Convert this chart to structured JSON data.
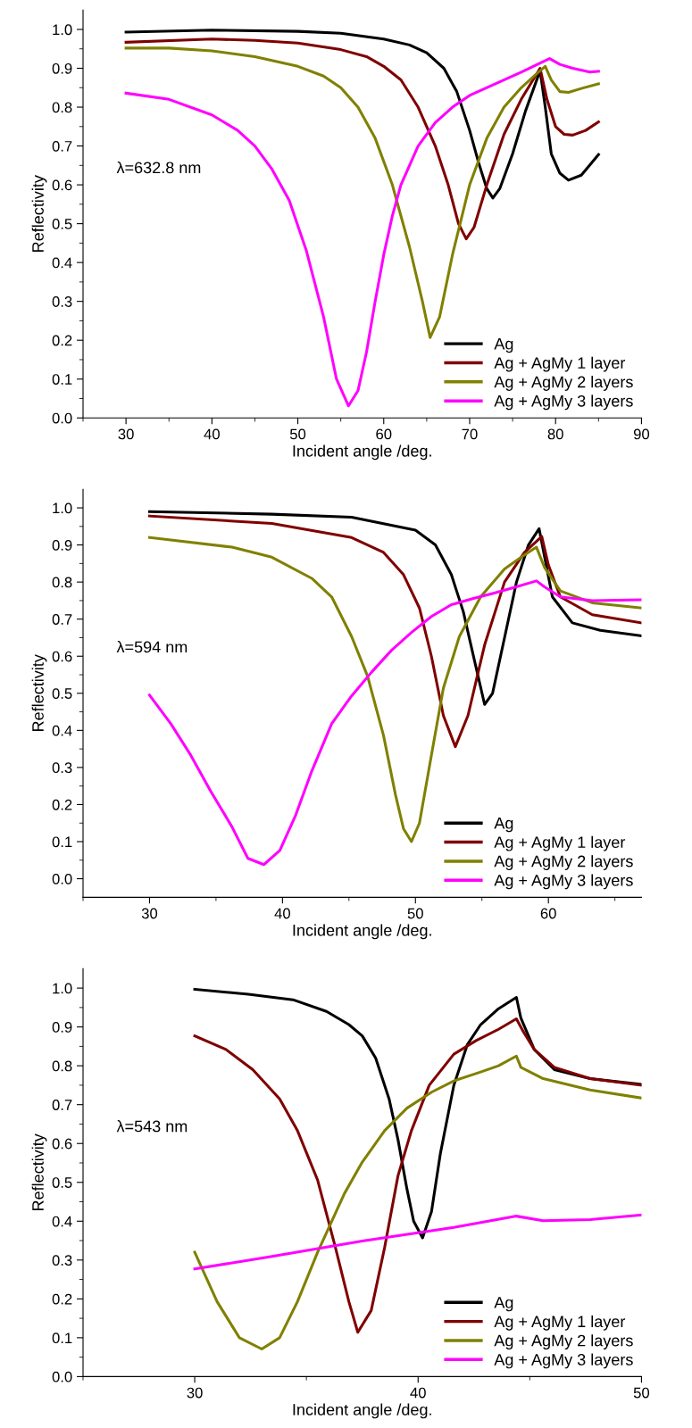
{
  "chart_data": [
    {
      "type": "line",
      "xlabel": "Incident angle /deg.",
      "ylabel": "Reflectivity",
      "annotations": [
        "λ=632.8 nm"
      ],
      "xlim": [
        25,
        90
      ],
      "ylim": [
        0,
        1.05
      ],
      "xticks": [
        30,
        40,
        50,
        60,
        70,
        80,
        90,
        {
          "value": 25,
          "label": null
        },
        {
          "value": 35,
          "label": null
        },
        {
          "value": 45,
          "label": null
        },
        {
          "value": 55,
          "label": null
        },
        {
          "value": 65,
          "label": null
        },
        {
          "value": 75,
          "label": null
        },
        {
          "value": 85,
          "label": null
        }
      ],
      "yticks": [
        "0.0",
        0.1,
        0.2,
        0.3,
        0.4,
        0.5,
        0.6,
        0.7,
        0.8,
        0.9,
        "1.0"
      ],
      "grid": false,
      "legend": "bottom right",
      "line_style": "solid",
      "marker": "none",
      "series": [
        {
          "name": "Ag",
          "color": "#000000",
          "x": [
            30,
            40,
            50,
            55,
            60,
            63,
            65,
            67,
            68.5,
            70,
            71,
            72,
            72.7,
            73.5,
            75,
            76.5,
            78.2,
            78.8,
            79.5,
            80.5,
            81.5,
            83,
            85
          ],
          "values": [
            0.993,
            0.998,
            0.995,
            0.99,
            0.975,
            0.96,
            0.94,
            0.9,
            0.84,
            0.74,
            0.66,
            0.59,
            0.566,
            0.59,
            0.68,
            0.79,
            0.894,
            0.8,
            0.68,
            0.63,
            0.612,
            0.625,
            0.678
          ]
        },
        {
          "name": "Ag + AgMy 1 layer",
          "color": "#800000",
          "x": [
            30,
            40,
            45,
            50,
            55,
            58,
            60,
            62,
            64,
            66,
            67.5,
            68.7,
            69.6,
            70.5,
            72,
            74,
            76,
            78.2,
            79,
            80,
            81,
            82,
            83.5,
            85
          ],
          "values": [
            0.967,
            0.975,
            0.972,
            0.965,
            0.948,
            0.93,
            0.905,
            0.87,
            0.8,
            0.7,
            0.6,
            0.5,
            0.461,
            0.49,
            0.6,
            0.73,
            0.82,
            0.9,
            0.82,
            0.75,
            0.73,
            0.728,
            0.74,
            0.762
          ]
        },
        {
          "name": "Ag + AgMy 2 layers",
          "color": "#808000",
          "x": [
            30,
            35,
            40,
            45,
            50,
            53,
            55,
            57,
            59,
            61,
            63,
            64.5,
            65.4,
            66.5,
            68,
            70,
            72,
            74,
            76,
            78,
            78.8,
            79.5,
            80.5,
            81.5,
            83,
            85
          ],
          "values": [
            0.952,
            0.952,
            0.945,
            0.93,
            0.905,
            0.88,
            0.85,
            0.8,
            0.72,
            0.6,
            0.44,
            0.3,
            0.207,
            0.26,
            0.42,
            0.6,
            0.72,
            0.8,
            0.85,
            0.89,
            0.905,
            0.87,
            0.84,
            0.838,
            0.848,
            0.86
          ]
        },
        {
          "name": "Ag + AgMy 3 layers",
          "color": "#ff00ff",
          "x": [
            30,
            35,
            40,
            43,
            45,
            47,
            49,
            51,
            53,
            54.5,
            55.9,
            57,
            58,
            59,
            60,
            61,
            62,
            64,
            66,
            68,
            70,
            73,
            76,
            79.3,
            80.5,
            82,
            84,
            85
          ],
          "values": [
            0.836,
            0.82,
            0.78,
            0.74,
            0.7,
            0.64,
            0.56,
            0.43,
            0.26,
            0.1,
            0.031,
            0.07,
            0.17,
            0.3,
            0.42,
            0.52,
            0.6,
            0.7,
            0.76,
            0.8,
            0.83,
            0.86,
            0.89,
            0.925,
            0.91,
            0.9,
            0.89,
            0.892
          ]
        }
      ]
    },
    {
      "type": "line",
      "xlabel": "Incident angle /deg.",
      "ylabel": "Reflectivity",
      "annotations": [
        "λ=594 nm"
      ],
      "xlim": [
        25,
        67
      ],
      "ylim": [
        -0.05,
        1.05
      ],
      "xticks": [
        30,
        40,
        50,
        60,
        {
          "value": 25,
          "label": null
        },
        {
          "value": 35,
          "label": null
        },
        {
          "value": 45,
          "label": null
        },
        {
          "value": 55,
          "label": null
        },
        {
          "value": 65,
          "label": null
        }
      ],
      "yticks": [
        "0.0",
        0.1,
        0.2,
        0.3,
        0.4,
        0.5,
        0.6,
        0.7,
        0.8,
        0.9,
        "1.0"
      ],
      "grid": false,
      "legend": "bottom right",
      "line_style": "solid",
      "marker": "none",
      "series": [
        {
          "name": "Ag",
          "color": "#000000",
          "x": [
            30,
            39.2,
            45.2,
            50,
            51.5,
            52.7,
            53.6,
            54.3,
            55.2,
            55.8,
            56.7,
            57.6,
            58.5,
            59.3,
            59.7,
            60.3,
            61.8,
            63.9,
            67
          ],
          "values": [
            0.99,
            0.983,
            0.975,
            0.94,
            0.9,
            0.82,
            0.72,
            0.61,
            0.47,
            0.5,
            0.65,
            0.8,
            0.9,
            0.944,
            0.87,
            0.76,
            0.69,
            0.67,
            0.655
          ]
        },
        {
          "name": "Ag + AgMy 1 layer",
          "color": "#800000",
          "x": [
            30,
            39.2,
            45.2,
            47.6,
            49.1,
            50.3,
            51.2,
            52.1,
            53,
            53.95,
            55.2,
            56.7,
            58.2,
            59.5,
            60,
            60.9,
            63.3,
            67
          ],
          "values": [
            0.978,
            0.958,
            0.92,
            0.88,
            0.82,
            0.73,
            0.6,
            0.44,
            0.356,
            0.44,
            0.63,
            0.8,
            0.88,
            0.923,
            0.846,
            0.76,
            0.712,
            0.69
          ]
        },
        {
          "name": "Ag + AgMy 2 layers",
          "color": "#808000",
          "x": [
            30,
            36.2,
            39.2,
            42.2,
            43.7,
            45.2,
            46.4,
            47.6,
            48.5,
            49.1,
            49.7,
            50.3,
            51.2,
            52.1,
            53.3,
            54.9,
            56.7,
            58.2,
            59.1,
            59.7,
            60.9,
            63.3,
            67
          ],
          "values": [
            0.92,
            0.894,
            0.867,
            0.81,
            0.76,
            0.653,
            0.546,
            0.386,
            0.226,
            0.135,
            0.1,
            0.15,
            0.333,
            0.514,
            0.653,
            0.76,
            0.835,
            0.873,
            0.894,
            0.84,
            0.776,
            0.744,
            0.73
          ]
        },
        {
          "name": "Ag + AgMy 3 layers",
          "color": "#ff00ff",
          "x": [
            30,
            31.6,
            33.1,
            34.6,
            36.2,
            37.4,
            38.6,
            39.8,
            41,
            42.2,
            43.7,
            45.2,
            46.7,
            48.2,
            49.7,
            51.2,
            52.7,
            54.3,
            55.8,
            57.3,
            59.1,
            59.7,
            60.9,
            63.3,
            67
          ],
          "values": [
            0.495,
            0.418,
            0.333,
            0.236,
            0.14,
            0.055,
            0.038,
            0.076,
            0.172,
            0.29,
            0.418,
            0.493,
            0.557,
            0.616,
            0.664,
            0.707,
            0.739,
            0.755,
            0.769,
            0.784,
            0.803,
            0.787,
            0.76,
            0.75,
            0.752
          ]
        }
      ]
    },
    {
      "type": "line",
      "xlabel": "Incident angle /deg.",
      "ylabel": "Reflectivity",
      "annotations": [
        "λ=543 nm"
      ],
      "xlim": [
        25,
        50
      ],
      "ylim": [
        0,
        1.05
      ],
      "xticks": [
        30,
        40,
        50,
        {
          "value": 25,
          "label": null
        },
        {
          "value": 35,
          "label": null
        },
        {
          "value": 45,
          "label": null
        }
      ],
      "yticks": [
        "0.0",
        0.1,
        0.2,
        0.3,
        0.4,
        0.5,
        0.6,
        0.7,
        0.8,
        0.9,
        "1.0"
      ],
      "grid": false,
      "legend": "bottom right",
      "line_style": "solid",
      "marker": "none",
      "series": [
        {
          "name": "Ag",
          "color": "#000000",
          "x": [
            30,
            32.4,
            34.4,
            35.9,
            36.9,
            37.5,
            38.1,
            38.7,
            39.1,
            39.5,
            39.8,
            40.2,
            40.6,
            41,
            41.6,
            42.2,
            42.8,
            43.6,
            44.4,
            44.6,
            45.2,
            46.1,
            47.7,
            50
          ],
          "values": [
            0.997,
            0.984,
            0.97,
            0.94,
            0.906,
            0.877,
            0.82,
            0.715,
            0.61,
            0.483,
            0.4,
            0.357,
            0.425,
            0.575,
            0.75,
            0.854,
            0.906,
            0.947,
            0.976,
            0.923,
            0.842,
            0.79,
            0.767,
            0.752
          ]
        },
        {
          "name": "Ag + AgMy 1 layer",
          "color": "#800000",
          "x": [
            30,
            31.4,
            32.6,
            33.8,
            34.6,
            35.5,
            36.3,
            36.9,
            37.3,
            37.9,
            38.5,
            39.1,
            39.7,
            40.5,
            41.6,
            42.6,
            43.6,
            44.4,
            44.7,
            45.2,
            46.1,
            47.7,
            50
          ],
          "values": [
            0.877,
            0.842,
            0.79,
            0.715,
            0.633,
            0.506,
            0.332,
            0.193,
            0.114,
            0.17,
            0.332,
            0.517,
            0.633,
            0.75,
            0.83,
            0.865,
            0.894,
            0.921,
            0.889,
            0.842,
            0.796,
            0.767,
            0.75
          ]
        },
        {
          "name": "Ag + AgMy 2 layers",
          "color": "#808000",
          "x": [
            30,
            31,
            32,
            33,
            33.8,
            34.6,
            35.5,
            36.7,
            37.5,
            38.5,
            39.5,
            40.6,
            41.6,
            42.8,
            43.6,
            44.4,
            44.6,
            45.6,
            47.7,
            50
          ],
          "values": [
            0.32,
            0.193,
            0.1,
            0.071,
            0.1,
            0.193,
            0.32,
            0.471,
            0.552,
            0.633,
            0.691,
            0.732,
            0.761,
            0.784,
            0.8,
            0.825,
            0.796,
            0.767,
            0.738,
            0.717
          ]
        },
        {
          "name": "Ag + AgMy 3 layers",
          "color": "#ff00ff",
          "x": [
            30,
            33.4,
            37.5,
            41.6,
            44.4,
            45.6,
            47.7,
            50
          ],
          "values": [
            0.277,
            0.309,
            0.349,
            0.384,
            0.413,
            0.401,
            0.404,
            0.416
          ]
        }
      ]
    }
  ]
}
